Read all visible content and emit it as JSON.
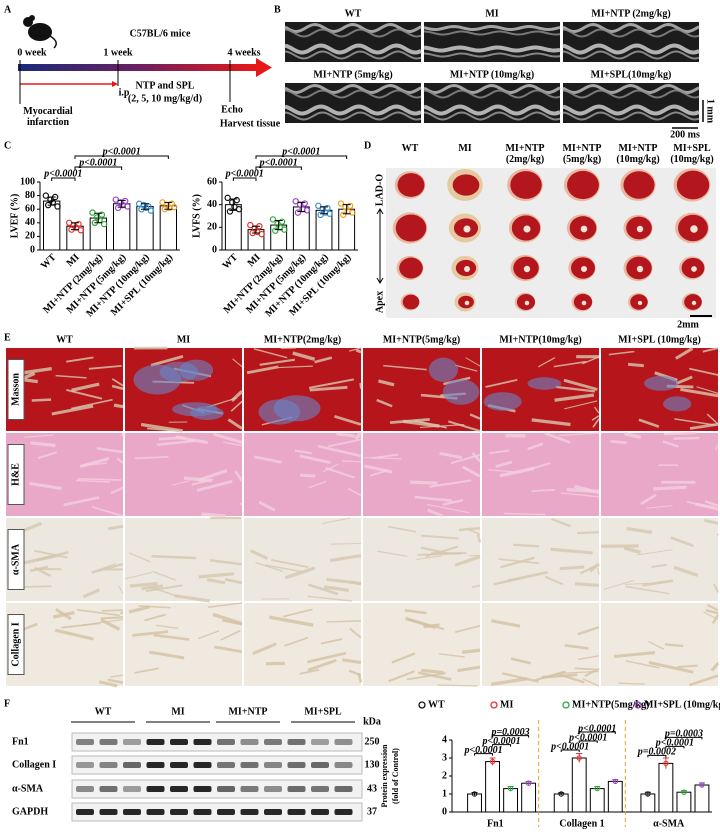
{
  "panel_a": {
    "letter": "A",
    "strain": "C57BL/6 mice",
    "timepoints": [
      "0 week",
      "1 week",
      "4 weeks"
    ],
    "treatment": "NTP and SPL",
    "dose": "(2, 5, 10 mg/kg/d)",
    "route": "i.p",
    "surgery": "Myocardial infarction",
    "endpoint": [
      "Echo",
      "Harvest tissue"
    ]
  },
  "panel_b": {
    "letter": "B",
    "groups": [
      "WT",
      "MI",
      "MI+NTP (2mg/kg)",
      "MI+NTP (5mg/kg)",
      "MI+NTP (10mg/kg)",
      "MI+SPL(10mg/kg)"
    ],
    "time_scale": "200 ms",
    "depth_scale": "1 mm"
  },
  "panel_c": {
    "letter": "C"
  },
  "chart_data": [
    {
      "type": "dotbar",
      "y_label": "LVEF (%)",
      "categories": [
        "WT",
        "MI",
        "MI+NTP (2mg/kg)",
        "MI+NTP (5mg/kg)",
        "MI+NTP (10mg/kg)",
        "MI+SPL (10mg/kg)"
      ],
      "colors": [
        "#111111",
        "#e8312f",
        "#2eaa3a",
        "#9b3fc8",
        "#3a8fd0",
        "#f0a020"
      ],
      "values": [
        72,
        35,
        47,
        68,
        64,
        65
      ],
      "errors": [
        6,
        5,
        7,
        5,
        4,
        5
      ],
      "points": [
        [
          80,
          66,
          74,
          70,
          78,
          64
        ],
        [
          40,
          30,
          36,
          33,
          38,
          29
        ],
        [
          55,
          40,
          48,
          44,
          52,
          38
        ],
        [
          74,
          62,
          70,
          66,
          72,
          64
        ],
        [
          68,
          60,
          66,
          62,
          64,
          58
        ],
        [
          70,
          60,
          66,
          62,
          68,
          63
        ]
      ],
      "ylim": [
        0,
        100
      ],
      "yticks": [
        0,
        20,
        40,
        60,
        80,
        100
      ],
      "brackets": [
        {
          "text": "p<0.0001",
          "from": 0,
          "to": 1
        },
        {
          "text": "p<0.0001",
          "from": 1,
          "to": 3
        },
        {
          "text": "p<0.0001",
          "from": 1,
          "to": 5
        }
      ]
    },
    {
      "type": "dotbar",
      "y_label": "LVFS (%)",
      "categories": [
        "WT",
        "MI",
        "MI+NTP (2mg/kg)",
        "MI+NTP (5mg/kg)",
        "MI+NTP (10mg/kg)",
        "MI+SPL (10mg/kg)"
      ],
      "colors": [
        "#111111",
        "#e8312f",
        "#2eaa3a",
        "#9b3fc8",
        "#3a8fd0",
        "#f0a020"
      ],
      "values": [
        40,
        18,
        22,
        38,
        35,
        36
      ],
      "errors": [
        5,
        3,
        4,
        4,
        3,
        4
      ],
      "points": [
        [
          46,
          34,
          42,
          38,
          44,
          36
        ],
        [
          22,
          15,
          19,
          16,
          21,
          14
        ],
        [
          27,
          17,
          23,
          20,
          25,
          18
        ],
        [
          43,
          33,
          40,
          36,
          41,
          35
        ],
        [
          39,
          31,
          36,
          33,
          37,
          32
        ],
        [
          41,
          31,
          38,
          34,
          39,
          33
        ]
      ],
      "ylim": [
        0,
        60
      ],
      "yticks": [
        0,
        20,
        40,
        60
      ],
      "brackets": [
        {
          "text": "p<0.0001",
          "from": 0,
          "to": 1
        },
        {
          "text": "p<0.0001",
          "from": 1,
          "to": 3
        },
        {
          "text": "p<0.0001",
          "from": 1,
          "to": 5
        }
      ]
    },
    {
      "type": "groupbar",
      "y_label": "Protein expression (fold of Control)",
      "categories": [
        "Fn1",
        "Collagen 1",
        "α-SMA"
      ],
      "series": [
        {
          "name": "WT",
          "color": "#111111",
          "values": [
            1,
            1,
            1
          ],
          "errors": [
            0.08,
            0.07,
            0.1
          ]
        },
        {
          "name": "MI",
          "color": "#e8312f",
          "values": [
            2.8,
            3.0,
            2.7
          ],
          "errors": [
            0.2,
            0.25,
            0.3
          ]
        },
        {
          "name": "MI+NTP(5mg/kg)",
          "color": "#2eaa3a",
          "values": [
            1.3,
            1.3,
            1.1
          ],
          "errors": [
            0.12,
            0.12,
            0.08
          ]
        },
        {
          "name": "MI+SPL (10mg/kg)",
          "color": "#9b3fc8",
          "values": [
            1.6,
            1.7,
            1.5
          ],
          "errors": [
            0.1,
            0.1,
            0.12
          ]
        }
      ],
      "ylim": [
        0,
        4
      ],
      "yticks": [
        0,
        1,
        2,
        3,
        4
      ],
      "brackets": [
        [
          {
            "text": "p<0.0001",
            "from": 0,
            "to": 1
          },
          {
            "text": "p<0.0001",
            "from": 1,
            "to": 2
          },
          {
            "text": "p=0.0003",
            "from": 1,
            "to": 3
          }
        ],
        [
          {
            "text": "p<0.0001",
            "from": 0,
            "to": 1
          },
          {
            "text": "p<0.0001",
            "from": 1,
            "to": 2
          },
          {
            "text": "p<0.0001",
            "from": 1,
            "to": 3
          }
        ],
        [
          {
            "text": "p=0.0002",
            "from": 0,
            "to": 1
          },
          {
            "text": "p<0.0001",
            "from": 1,
            "to": 2
          },
          {
            "text": "p=0.0003",
            "from": 1,
            "to": 3
          }
        ]
      ]
    }
  ],
  "panel_d": {
    "letter": "D",
    "groups": [
      "WT",
      "MI",
      "MI+NTP (2mg/kg)",
      "MI+NTP (5mg/kg)",
      "MI+NTP (10mg/kg)",
      "MI+SPL (10mg/kg)"
    ],
    "top_label": "LAD-O",
    "bottom_label": "Apex",
    "scale": "2mm"
  },
  "panel_e": {
    "letter": "E",
    "groups": [
      "WT",
      "MI",
      "MI+NTP(2mg/kg)",
      "MI+NTP(5mg/kg)",
      "MI+NTP(10mg/kg)",
      "MI+SPL (10mg/kg)"
    ],
    "stains": [
      "Masson",
      "H&E",
      "α-SMA",
      "Collagen I"
    ]
  },
  "panel_f": {
    "letter": "F",
    "blot_groups": [
      "WT",
      "MI",
      "MI+NTP",
      "MI+SPL"
    ],
    "unit": "kDa",
    "proteins": [
      {
        "name": "Fn1",
        "size": 250
      },
      {
        "name": "Collagen I",
        "size": 130
      },
      {
        "name": "α-SMA",
        "size": 43
      },
      {
        "name": "GAPDH",
        "size": 37
      }
    ]
  }
}
